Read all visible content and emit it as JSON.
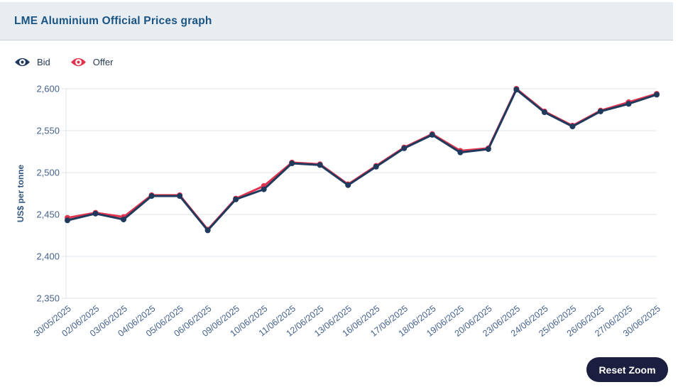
{
  "header": {
    "title": "LME Aluminium Official Prices graph"
  },
  "legend": [
    {
      "label": "Bid",
      "color": "#1f3a5c",
      "icon": "eye-icon"
    },
    {
      "label": "Offer",
      "color": "#e0344e",
      "icon": "eye-icon"
    }
  ],
  "reset_zoom_label": "Reset Zoom",
  "chart_data": {
    "type": "line",
    "title": "LME Aluminium Official Prices graph",
    "xlabel": "",
    "ylabel": "US$ per tonne",
    "ylim": [
      2350,
      2600
    ],
    "ytick_step": 50,
    "grid": true,
    "legend_position": "top-left",
    "categories": [
      "30/05/2025",
      "02/06/2025",
      "03/06/2025",
      "04/06/2025",
      "05/06/2025",
      "06/06/2025",
      "09/06/2025",
      "10/06/2025",
      "11/06/2025",
      "12/06/2025",
      "13/06/2025",
      "16/06/2025",
      "17/06/2025",
      "18/06/2025",
      "19/06/2025",
      "20/06/2025",
      "23/06/2025",
      "24/06/2025",
      "25/06/2025",
      "26/06/2025",
      "27/06/2025",
      "30/06/2025"
    ],
    "series": [
      {
        "name": "Bid",
        "color": "#1f3a5c",
        "values": [
          2443,
          2451,
          2444,
          2472,
          2472,
          2431,
          2468,
          2480,
          2511,
          2509,
          2485,
          2507,
          2529,
          2545,
          2524,
          2528,
          2599,
          2572,
          2555,
          2573,
          2582,
          2593
        ]
      },
      {
        "name": "Offer",
        "color": "#e0344e",
        "values": [
          2446,
          2452,
          2447,
          2473,
          2473,
          2432,
          2469,
          2484,
          2512,
          2510,
          2486,
          2508,
          2530,
          2546,
          2526,
          2529,
          2600,
          2573,
          2556,
          2574,
          2584,
          2594
        ]
      }
    ]
  }
}
